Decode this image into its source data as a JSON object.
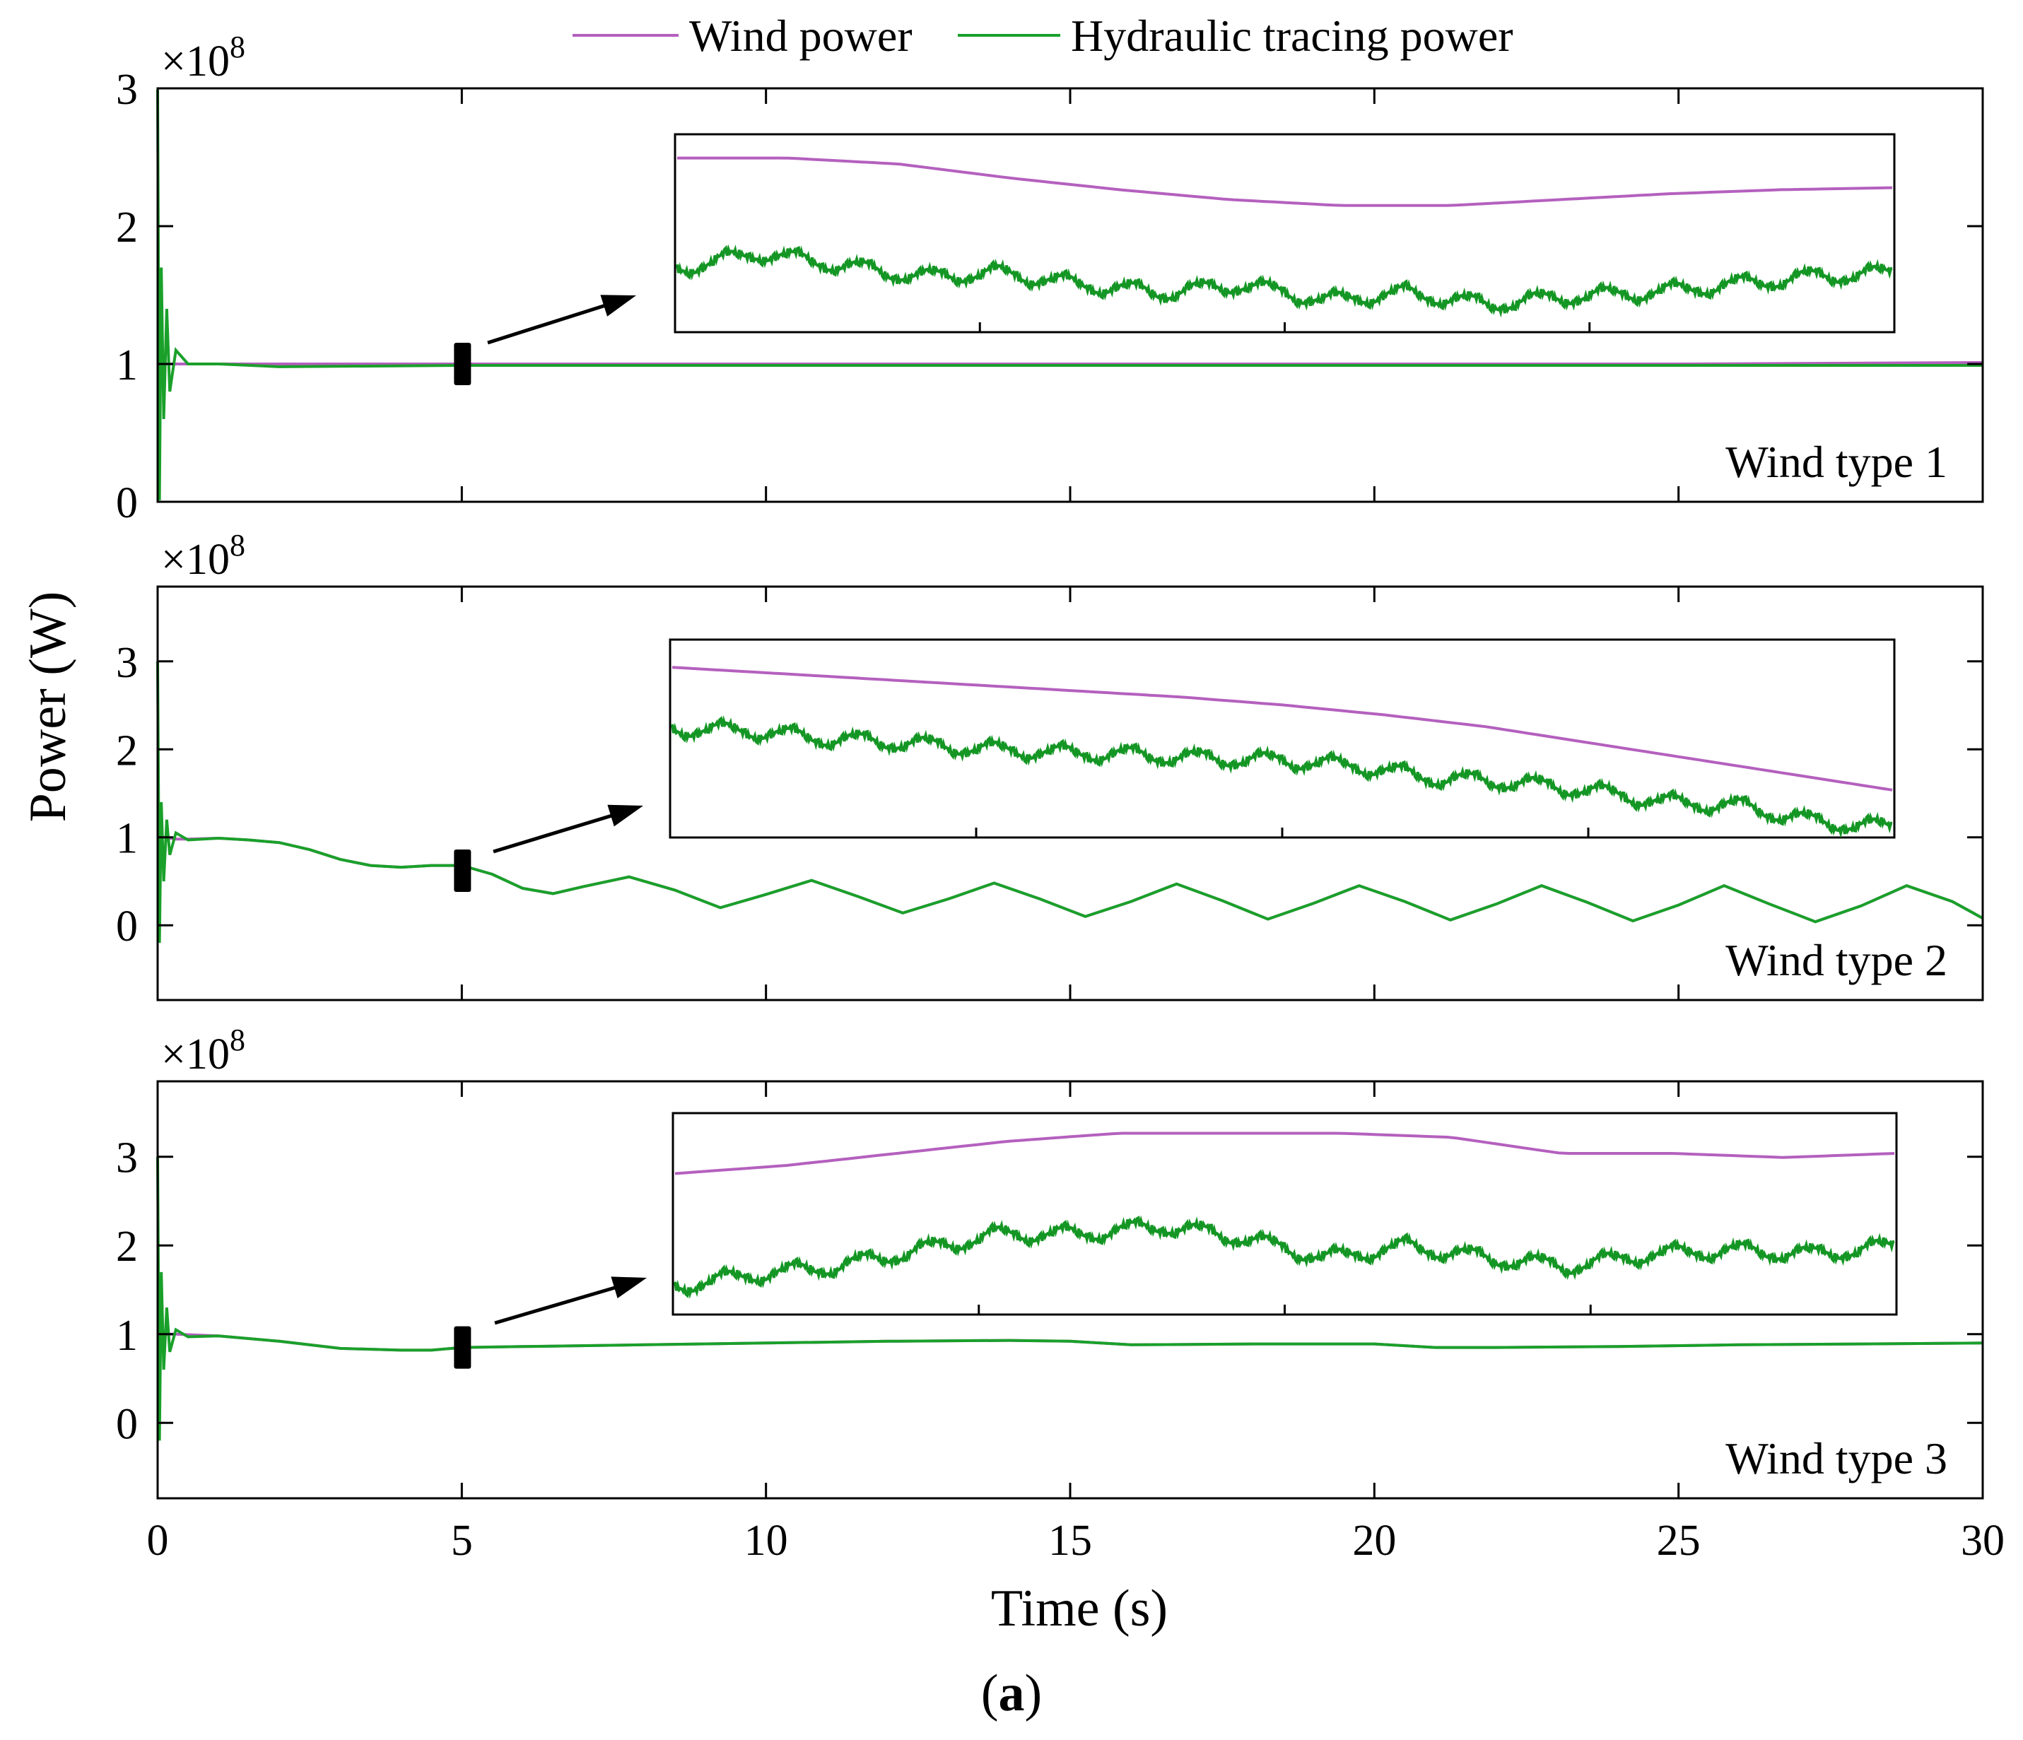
{
  "figure": {
    "caption_open": "(",
    "caption_letter": "a",
    "caption_close": ")"
  },
  "colors": {
    "wind": "#b460be",
    "hydraulic": "#1aa02a"
  },
  "chart_data": [
    {
      "type": "line",
      "panel_label": "Wind type 1",
      "exponent_label": "×10",
      "exponent_power": "8",
      "xlabel": "Time (s)",
      "ylabel": "Power (W)",
      "xlim": [
        0,
        30
      ],
      "ylim": [
        0,
        3
      ],
      "yticks": [
        0,
        1,
        2,
        3
      ],
      "xticks": [
        0,
        5,
        10,
        15,
        20,
        25,
        30
      ],
      "series": [
        {
          "name": "Wind power",
          "x": [
            0,
            0.3,
            1,
            5,
            10,
            15,
            20,
            25,
            30
          ],
          "values": [
            1.0,
            1.0,
            1.0,
            1.0,
            1.0,
            1.0,
            1.0,
            1.0,
            1.01
          ]
        },
        {
          "name": "Hydraulic tracing power",
          "x": [
            0,
            0.03,
            0.06,
            0.1,
            0.15,
            0.2,
            0.3,
            0.5,
            1,
            2,
            5,
            10,
            15,
            20,
            25,
            30
          ],
          "values": [
            3.0,
            0.0,
            1.7,
            0.6,
            1.4,
            0.8,
            1.1,
            1.0,
            1.0,
            0.98,
            0.99,
            0.99,
            0.99,
            0.99,
            0.99,
            0.99
          ]
        }
      ],
      "inset": {
        "wind_shape": [
          0.12,
          0.12,
          0.15,
          0.22,
          0.28,
          0.33,
          0.36,
          0.36,
          0.33,
          0.3,
          0.28,
          0.27
        ],
        "hyd_shape": [
          0.68,
          0.6,
          0.66,
          0.72,
          0.7,
          0.76,
          0.8,
          0.76,
          0.84,
          0.8,
          0.86,
          0.82,
          0.8,
          0.76,
          0.72,
          0.7
        ]
      }
    },
    {
      "type": "line",
      "panel_label": "Wind type 2",
      "exponent_label": "×10",
      "exponent_power": "8",
      "xlabel": "Time (s)",
      "ylabel": "Power (W)",
      "xlim": [
        0,
        30
      ],
      "ylim": [
        -0.85,
        3.85
      ],
      "yticks": [
        0,
        1,
        2,
        3
      ],
      "xticks": [
        0,
        5,
        10,
        15,
        20,
        25,
        30
      ],
      "series": [
        {
          "name": "Wind power",
          "x": [
            0,
            0.1,
            0.3,
            0.5,
            1,
            1.5,
            2,
            2.5,
            3,
            3.5,
            4,
            4.5,
            5,
            5.5,
            6,
            6.5,
            7,
            7.75,
            8.5,
            9.25,
            10,
            10.75,
            11.5,
            12.25,
            13,
            13.75,
            14.5,
            15.25,
            16,
            16.75,
            17.5,
            18.25,
            19,
            19.75,
            20.5,
            21.25,
            22,
            22.75,
            23.5,
            24.25,
            25,
            25.75,
            26.5,
            27.25,
            28,
            28.75,
            29.5,
            30
          ],
          "values": [
            1.0,
            1.0,
            0.98,
            0.98,
            0.99,
            0.97,
            0.94,
            0.86,
            0.75,
            0.68,
            0.66,
            0.68,
            0.68,
            0.58,
            0.42,
            0.36,
            0.44,
            0.55,
            0.4,
            0.2,
            0.35,
            0.51,
            0.33,
            0.14,
            0.3,
            0.48,
            0.3,
            0.1,
            0.27,
            0.47,
            0.28,
            0.07,
            0.25,
            0.45,
            0.27,
            0.06,
            0.24,
            0.45,
            0.26,
            0.05,
            0.23,
            0.45,
            0.24,
            0.04,
            0.22,
            0.45,
            0.27,
            0.08
          ]
        },
        {
          "name": "Hydraulic tracing power",
          "x": [
            0,
            0.03,
            0.06,
            0.1,
            0.15,
            0.2,
            0.3,
            0.5,
            1,
            1.5,
            2,
            2.5,
            3,
            3.5,
            4,
            4.5,
            5,
            5.5,
            6,
            6.5,
            7,
            7.75,
            8.5,
            9.25,
            10,
            10.75,
            11.5,
            12.25,
            13,
            13.75,
            14.5,
            15.25,
            16,
            16.75,
            17.5,
            18.25,
            19,
            19.75,
            20.5,
            21.25,
            22,
            22.75,
            23.5,
            24.25,
            25,
            25.75,
            26.5,
            27.25,
            28,
            28.75,
            29.5,
            30
          ],
          "values": [
            3.0,
            -0.2,
            1.4,
            0.5,
            1.2,
            0.8,
            1.05,
            0.97,
            0.99,
            0.97,
            0.94,
            0.86,
            0.75,
            0.68,
            0.66,
            0.68,
            0.68,
            0.58,
            0.42,
            0.36,
            0.44,
            0.55,
            0.4,
            0.2,
            0.35,
            0.51,
            0.33,
            0.14,
            0.3,
            0.48,
            0.3,
            0.1,
            0.27,
            0.47,
            0.28,
            0.07,
            0.25,
            0.45,
            0.27,
            0.06,
            0.24,
            0.45,
            0.26,
            0.05,
            0.23,
            0.45,
            0.24,
            0.04,
            0.22,
            0.45,
            0.27,
            0.08
          ]
        }
      ],
      "inset": {
        "wind_shape": [
          0.14,
          0.17,
          0.2,
          0.23,
          0.26,
          0.29,
          0.33,
          0.38,
          0.44,
          0.52,
          0.6,
          0.68,
          0.76
        ],
        "hyd_shape": [
          0.45,
          0.46,
          0.5,
          0.52,
          0.55,
          0.57,
          0.58,
          0.6,
          0.61,
          0.64,
          0.7,
          0.72,
          0.76,
          0.82,
          0.84,
          0.92,
          0.95
        ]
      }
    },
    {
      "type": "line",
      "panel_label": "Wind type 3",
      "exponent_label": "×10",
      "exponent_power": "8",
      "xlabel": "Time (s)",
      "ylabel": "Power (W)",
      "xlim": [
        0,
        30
      ],
      "ylim": [
        -0.85,
        3.85
      ],
      "yticks": [
        0,
        1,
        2,
        3
      ],
      "xticks": [
        0,
        5,
        10,
        15,
        20,
        25,
        30
      ],
      "series": [
        {
          "name": "Wind power",
          "x": [
            0,
            0.3,
            1,
            2,
            3,
            4,
            4.5,
            5,
            6,
            8,
            10,
            12,
            14,
            15,
            16,
            18,
            20,
            21,
            22,
            24,
            26,
            28,
            30
          ],
          "values": [
            1.0,
            1.0,
            0.98,
            0.92,
            0.84,
            0.82,
            0.82,
            0.85,
            0.86,
            0.88,
            0.9,
            0.92,
            0.93,
            0.92,
            0.88,
            0.89,
            0.89,
            0.85,
            0.85,
            0.86,
            0.88,
            0.89,
            0.9
          ]
        },
        {
          "name": "Hydraulic tracing power",
          "x": [
            0,
            0.03,
            0.06,
            0.1,
            0.15,
            0.2,
            0.3,
            0.5,
            1,
            2,
            3,
            4,
            4.5,
            5,
            6,
            8,
            10,
            12,
            14,
            15,
            16,
            18,
            20,
            21,
            22,
            24,
            26,
            28,
            30
          ],
          "values": [
            3.0,
            -0.2,
            1.7,
            0.6,
            1.3,
            0.8,
            1.05,
            0.97,
            0.98,
            0.92,
            0.84,
            0.82,
            0.82,
            0.85,
            0.86,
            0.88,
            0.9,
            0.92,
            0.93,
            0.92,
            0.88,
            0.89,
            0.89,
            0.85,
            0.85,
            0.86,
            0.88,
            0.89,
            0.9
          ]
        }
      ],
      "inset": {
        "wind_shape": [
          0.3,
          0.26,
          0.2,
          0.14,
          0.1,
          0.1,
          0.1,
          0.12,
          0.2,
          0.2,
          0.22,
          0.2
        ],
        "hyd_shape": [
          0.86,
          0.8,
          0.76,
          0.68,
          0.6,
          0.6,
          0.56,
          0.62,
          0.72,
          0.66,
          0.72,
          0.76,
          0.7,
          0.68,
          0.7,
          0.66
        ]
      }
    }
  ],
  "legend": {
    "entries": [
      "Wind power",
      "Hydraulic tracing power"
    ]
  }
}
